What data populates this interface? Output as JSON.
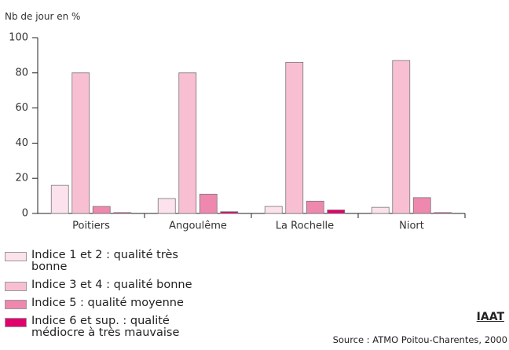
{
  "chart_data": {
    "type": "bar",
    "y_label": "Nb de jour en %",
    "categories": [
      "Poitiers",
      "Angoulême",
      "La Rochelle",
      "Niort"
    ],
    "series": [
      {
        "name": "Indice 1 et 2 : qualité très bonne",
        "color": "#fce2ec",
        "values": [
          16,
          8.5,
          4,
          3.5
        ]
      },
      {
        "name": "Indice 3 et 4 : qualité bonne",
        "color": "#f8bfd3",
        "values": [
          80,
          80,
          86,
          87
        ]
      },
      {
        "name": "Indice 5 : qualité moyenne",
        "color": "#ee88ae",
        "values": [
          4,
          11,
          7,
          9
        ]
      },
      {
        "name": "Indice 6 et sup. : qualité médiocre à très mauvaise",
        "color": "#e2006d",
        "values": [
          0.5,
          1,
          2,
          0.5
        ]
      }
    ],
    "ylim": [
      0,
      100
    ],
    "yticks": [
      0,
      20,
      40,
      60,
      80,
      100
    ],
    "grid": false,
    "brand": "IAAT",
    "source": "Source : ATMO Poitou-Charentes, 2000"
  }
}
